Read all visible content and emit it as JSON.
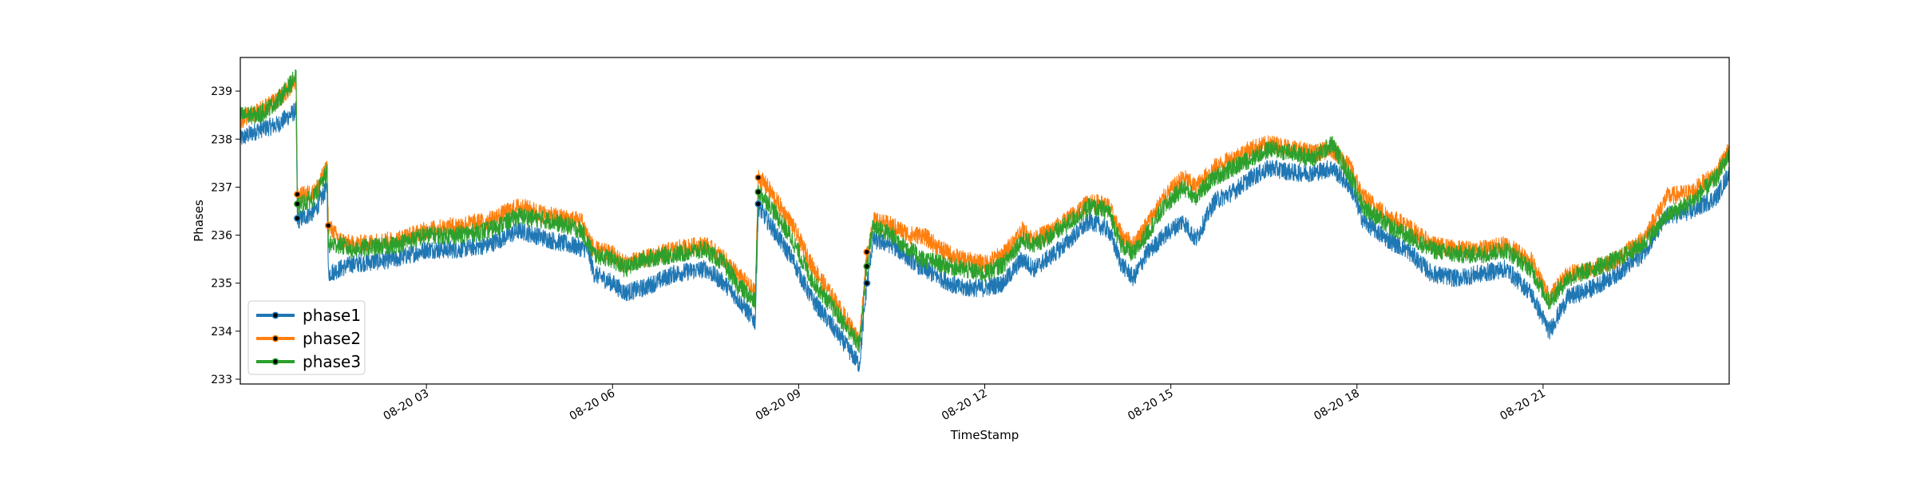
{
  "chart_data": {
    "type": "line",
    "title": "",
    "xlabel": "TimeStamp",
    "ylabel": "Phases",
    "ylim": [
      232.9,
      239.7
    ],
    "xlim_hours": [
      0.0,
      24.0
    ],
    "y_ticks": [
      233,
      234,
      235,
      236,
      237,
      238,
      239
    ],
    "x_ticks": [
      {
        "label": "08-20 03",
        "hour": 3
      },
      {
        "label": "08-20 06",
        "hour": 6
      },
      {
        "label": "08-20 09",
        "hour": 9
      },
      {
        "label": "08-20 12",
        "hour": 12
      },
      {
        "label": "08-20 15",
        "hour": 15
      },
      {
        "label": "08-20 18",
        "hour": 18
      },
      {
        "label": "08-20 21",
        "hour": 21
      }
    ],
    "grid": false,
    "legend_position": "lower-left",
    "series": [
      {
        "name": "phase1",
        "color": "#1f77b4",
        "points": [
          [
            0.0,
            238.0
          ],
          [
            0.3,
            238.2
          ],
          [
            0.6,
            238.3
          ],
          [
            0.9,
            238.6
          ],
          [
            0.92,
            236.3
          ],
          [
            1.2,
            236.5
          ],
          [
            1.4,
            237.0
          ],
          [
            1.42,
            235.2
          ],
          [
            1.8,
            235.4
          ],
          [
            2.5,
            235.5
          ],
          [
            3.0,
            235.7
          ],
          [
            3.5,
            235.7
          ],
          [
            4.0,
            235.8
          ],
          [
            4.5,
            236.1
          ],
          [
            5.0,
            235.9
          ],
          [
            5.6,
            235.7
          ],
          [
            5.7,
            235.2
          ],
          [
            6.0,
            235.0
          ],
          [
            6.2,
            234.8
          ],
          [
            6.5,
            234.9
          ],
          [
            7.0,
            235.2
          ],
          [
            7.5,
            235.3
          ],
          [
            7.8,
            235.0
          ],
          [
            8.0,
            234.7
          ],
          [
            8.3,
            234.2
          ],
          [
            8.35,
            236.6
          ],
          [
            8.5,
            236.3
          ],
          [
            8.9,
            235.5
          ],
          [
            9.2,
            234.7
          ],
          [
            9.6,
            234.0
          ],
          [
            9.98,
            233.3
          ],
          [
            10.1,
            235.0
          ],
          [
            10.2,
            235.9
          ],
          [
            10.5,
            235.8
          ],
          [
            10.8,
            235.5
          ],
          [
            11.0,
            235.3
          ],
          [
            11.3,
            235.1
          ],
          [
            11.6,
            234.9
          ],
          [
            12.0,
            234.9
          ],
          [
            12.3,
            235.0
          ],
          [
            12.6,
            235.5
          ],
          [
            12.8,
            235.3
          ],
          [
            13.2,
            235.7
          ],
          [
            13.7,
            236.3
          ],
          [
            14.0,
            236.1
          ],
          [
            14.2,
            235.4
          ],
          [
            14.4,
            235.1
          ],
          [
            14.6,
            235.6
          ],
          [
            14.9,
            236.0
          ],
          [
            15.2,
            236.3
          ],
          [
            15.4,
            235.9
          ],
          [
            15.7,
            236.7
          ],
          [
            16.0,
            236.9
          ],
          [
            16.3,
            237.2
          ],
          [
            16.6,
            237.4
          ],
          [
            17.0,
            237.3
          ],
          [
            17.3,
            237.3
          ],
          [
            17.6,
            237.4
          ],
          [
            17.9,
            237.0
          ],
          [
            18.1,
            236.3
          ],
          [
            18.5,
            235.9
          ],
          [
            18.8,
            235.7
          ],
          [
            19.2,
            235.2
          ],
          [
            19.6,
            235.1
          ],
          [
            20.0,
            235.2
          ],
          [
            20.4,
            235.3
          ],
          [
            20.8,
            234.8
          ],
          [
            21.1,
            234.0
          ],
          [
            21.4,
            234.7
          ],
          [
            21.8,
            234.9
          ],
          [
            22.2,
            235.2
          ],
          [
            22.6,
            235.6
          ],
          [
            23.0,
            236.4
          ],
          [
            23.4,
            236.5
          ],
          [
            23.8,
            236.8
          ],
          [
            24.0,
            237.3
          ]
        ]
      },
      {
        "name": "phase2",
        "color": "#ff7f0e",
        "points": [
          [
            0.0,
            238.4
          ],
          [
            0.3,
            238.6
          ],
          [
            0.6,
            238.8
          ],
          [
            0.9,
            239.2
          ],
          [
            0.92,
            236.8
          ],
          [
            1.2,
            236.9
          ],
          [
            1.4,
            237.4
          ],
          [
            1.42,
            236.2
          ],
          [
            1.6,
            235.9
          ],
          [
            1.8,
            235.8
          ],
          [
            2.5,
            235.9
          ],
          [
            3.0,
            236.1
          ],
          [
            3.5,
            236.2
          ],
          [
            4.0,
            236.3
          ],
          [
            4.5,
            236.6
          ],
          [
            5.0,
            236.4
          ],
          [
            5.5,
            236.3
          ],
          [
            5.7,
            235.7
          ],
          [
            6.0,
            235.6
          ],
          [
            6.2,
            235.4
          ],
          [
            6.5,
            235.5
          ],
          [
            7.0,
            235.7
          ],
          [
            7.5,
            235.8
          ],
          [
            7.8,
            235.5
          ],
          [
            8.0,
            235.2
          ],
          [
            8.3,
            234.8
          ],
          [
            8.35,
            237.2
          ],
          [
            8.5,
            237.0
          ],
          [
            8.9,
            236.2
          ],
          [
            9.2,
            235.4
          ],
          [
            9.6,
            234.6
          ],
          [
            9.98,
            233.8
          ],
          [
            10.1,
            235.6
          ],
          [
            10.2,
            236.3
          ],
          [
            10.5,
            236.2
          ],
          [
            10.8,
            236.0
          ],
          [
            11.0,
            236.0
          ],
          [
            11.3,
            235.7
          ],
          [
            11.6,
            235.5
          ],
          [
            12.0,
            235.4
          ],
          [
            12.3,
            235.6
          ],
          [
            12.6,
            236.1
          ],
          [
            12.8,
            235.9
          ],
          [
            13.2,
            236.2
          ],
          [
            13.7,
            236.7
          ],
          [
            14.0,
            236.6
          ],
          [
            14.2,
            236.0
          ],
          [
            14.4,
            235.8
          ],
          [
            14.6,
            236.2
          ],
          [
            14.9,
            236.8
          ],
          [
            15.2,
            237.2
          ],
          [
            15.4,
            237.0
          ],
          [
            15.7,
            237.4
          ],
          [
            16.0,
            237.6
          ],
          [
            16.3,
            237.8
          ],
          [
            16.6,
            237.9
          ],
          [
            17.0,
            237.8
          ],
          [
            17.3,
            237.7
          ],
          [
            17.6,
            237.8
          ],
          [
            17.9,
            237.4
          ],
          [
            18.1,
            236.8
          ],
          [
            18.5,
            236.4
          ],
          [
            18.8,
            236.2
          ],
          [
            19.2,
            235.8
          ],
          [
            19.6,
            235.7
          ],
          [
            20.0,
            235.7
          ],
          [
            20.4,
            235.8
          ],
          [
            20.8,
            235.5
          ],
          [
            21.1,
            234.7
          ],
          [
            21.4,
            235.2
          ],
          [
            21.8,
            235.3
          ],
          [
            22.2,
            235.5
          ],
          [
            22.6,
            235.9
          ],
          [
            23.0,
            236.8
          ],
          [
            23.4,
            236.9
          ],
          [
            23.8,
            237.3
          ],
          [
            24.0,
            237.8
          ]
        ]
      },
      {
        "name": "phase3",
        "color": "#2ca02c",
        "points": [
          [
            0.0,
            238.5
          ],
          [
            0.3,
            238.5
          ],
          [
            0.6,
            238.8
          ],
          [
            0.9,
            239.3
          ],
          [
            0.92,
            236.6
          ],
          [
            1.2,
            236.8
          ],
          [
            1.4,
            237.3
          ],
          [
            1.42,
            235.8
          ],
          [
            1.6,
            235.8
          ],
          [
            1.8,
            235.7
          ],
          [
            2.5,
            235.8
          ],
          [
            3.0,
            236.0
          ],
          [
            3.5,
            236.0
          ],
          [
            4.0,
            236.1
          ],
          [
            4.5,
            236.4
          ],
          [
            5.0,
            236.3
          ],
          [
            5.5,
            236.1
          ],
          [
            5.7,
            235.6
          ],
          [
            6.0,
            235.5
          ],
          [
            6.2,
            235.3
          ],
          [
            6.5,
            235.5
          ],
          [
            7.0,
            235.6
          ],
          [
            7.5,
            235.7
          ],
          [
            7.8,
            235.4
          ],
          [
            8.0,
            235.0
          ],
          [
            8.3,
            234.6
          ],
          [
            8.35,
            236.9
          ],
          [
            8.5,
            236.7
          ],
          [
            8.9,
            235.9
          ],
          [
            9.2,
            235.1
          ],
          [
            9.6,
            234.4
          ],
          [
            9.98,
            233.7
          ],
          [
            10.1,
            235.4
          ],
          [
            10.2,
            236.2
          ],
          [
            10.5,
            236.0
          ],
          [
            10.8,
            235.7
          ],
          [
            11.0,
            235.5
          ],
          [
            11.3,
            235.4
          ],
          [
            11.6,
            235.3
          ],
          [
            12.0,
            235.2
          ],
          [
            12.3,
            235.4
          ],
          [
            12.6,
            235.9
          ],
          [
            12.8,
            235.8
          ],
          [
            13.2,
            236.1
          ],
          [
            13.7,
            236.6
          ],
          [
            14.0,
            236.5
          ],
          [
            14.2,
            235.8
          ],
          [
            14.4,
            235.6
          ],
          [
            14.6,
            236.0
          ],
          [
            14.9,
            236.6
          ],
          [
            15.2,
            237.0
          ],
          [
            15.4,
            236.8
          ],
          [
            15.7,
            237.2
          ],
          [
            16.0,
            237.4
          ],
          [
            16.3,
            237.6
          ],
          [
            16.6,
            237.8
          ],
          [
            17.0,
            237.7
          ],
          [
            17.3,
            237.6
          ],
          [
            17.6,
            237.9
          ],
          [
            17.9,
            237.2
          ],
          [
            18.1,
            236.6
          ],
          [
            18.5,
            236.2
          ],
          [
            18.8,
            236.0
          ],
          [
            19.2,
            235.7
          ],
          [
            19.6,
            235.6
          ],
          [
            20.0,
            235.6
          ],
          [
            20.4,
            235.7
          ],
          [
            20.8,
            235.3
          ],
          [
            21.1,
            234.6
          ],
          [
            21.4,
            235.1
          ],
          [
            21.8,
            235.3
          ],
          [
            22.2,
            235.5
          ],
          [
            22.6,
            235.8
          ],
          [
            23.0,
            236.4
          ],
          [
            23.4,
            236.7
          ],
          [
            23.8,
            237.2
          ],
          [
            24.0,
            237.7
          ]
        ]
      }
    ],
    "markers": [
      {
        "hour": 0.92,
        "value": 236.35,
        "series": "phase1"
      },
      {
        "hour": 0.92,
        "value": 236.65,
        "series": "phase3"
      },
      {
        "hour": 0.92,
        "value": 236.85,
        "series": "phase2"
      },
      {
        "hour": 1.42,
        "value": 236.2,
        "series": "phase2"
      },
      {
        "hour": 8.35,
        "value": 236.65,
        "series": "phase1"
      },
      {
        "hour": 8.35,
        "value": 236.9,
        "series": "phase3"
      },
      {
        "hour": 8.35,
        "value": 237.2,
        "series": "phase2"
      },
      {
        "hour": 10.1,
        "value": 235.0,
        "series": "phase1"
      },
      {
        "hour": 10.1,
        "value": 235.35,
        "series": "phase3"
      },
      {
        "hour": 10.1,
        "value": 235.65,
        "series": "phase2"
      }
    ]
  }
}
